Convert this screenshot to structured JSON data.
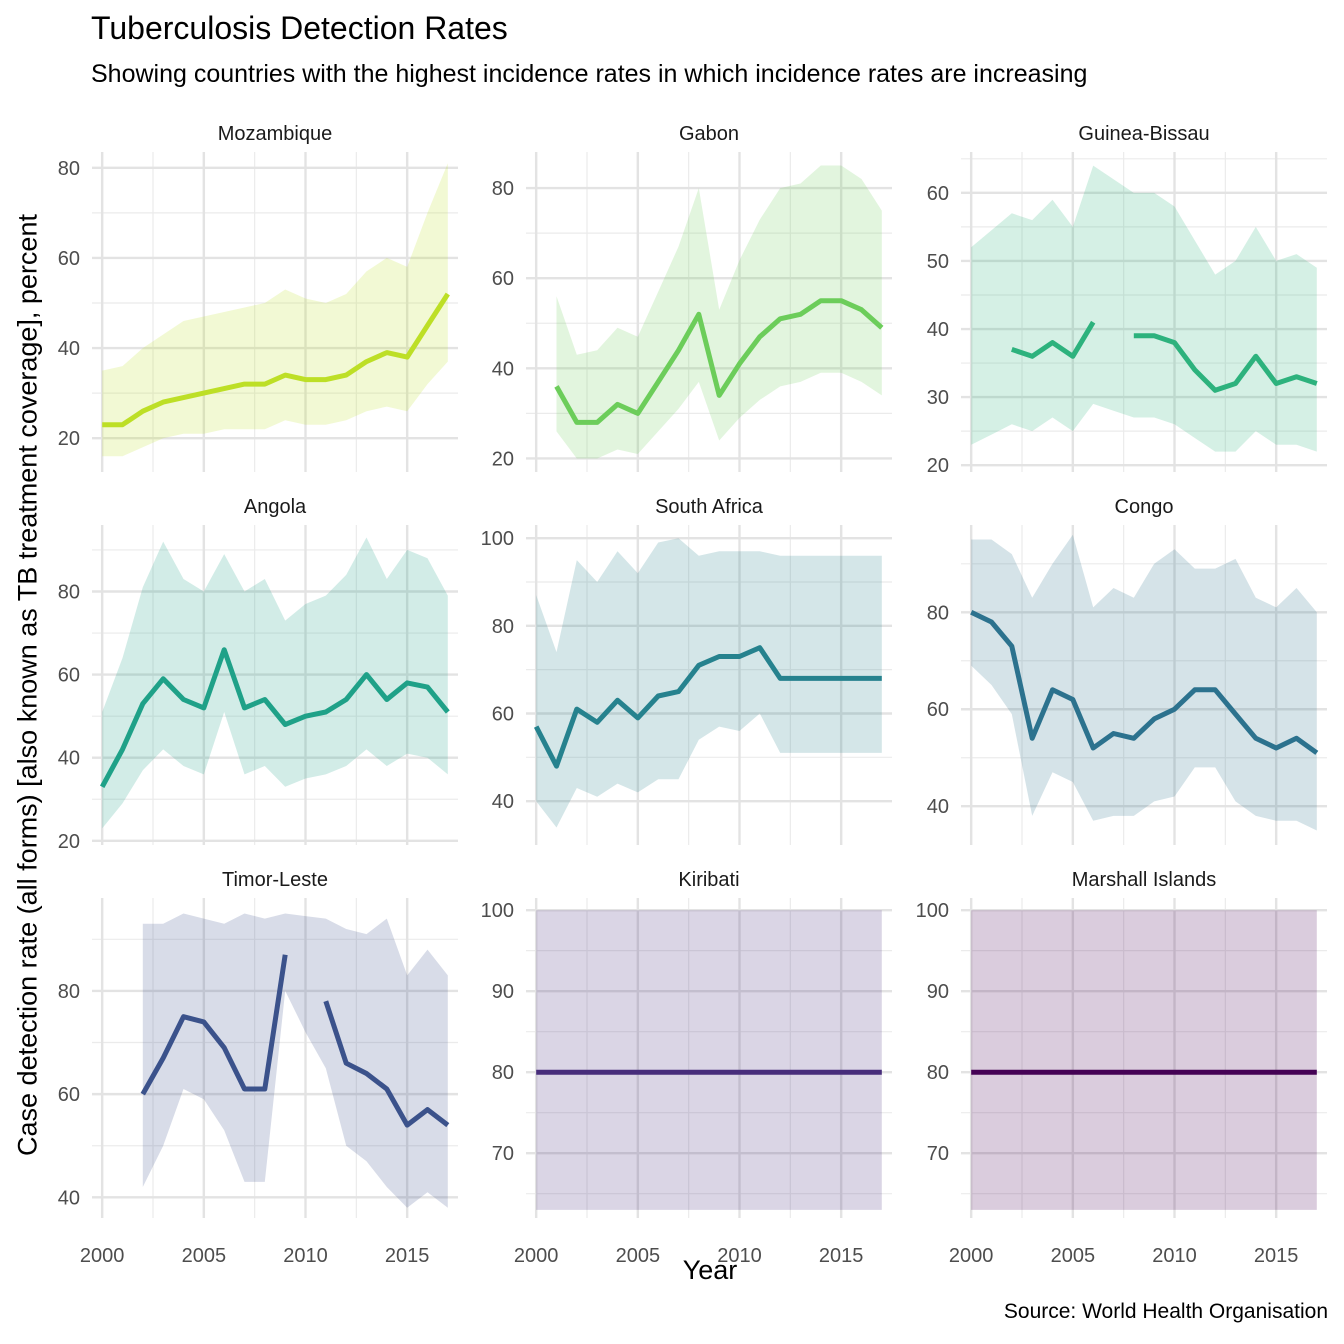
{
  "title": "Tuberculosis Detection Rates",
  "subtitle": "Showing countries with the highest incidence rates in which incidence rates are increasing",
  "caption": "Source: World Health Organisation",
  "xlabel": "Year",
  "ylabel": "Case detection rate (all forms) [also known as TB treatment coverage], percent",
  "chart_data": {
    "type": "line",
    "layout": "facet_wrap",
    "x_axis": {
      "label": "Year",
      "ticks": [
        2000,
        2005,
        2010,
        2015
      ],
      "xlim": [
        1999.5,
        2017.5
      ]
    },
    "y_axis": {
      "label": "Case detection rate (all forms) [also known as TB treatment coverage], percent"
    },
    "grid": true,
    "legend": "none",
    "panels": [
      {
        "name": "Mozambique",
        "color": "#bddf26",
        "ylim": [
          12.5,
          83.5
        ],
        "yticks": [
          20,
          40,
          60,
          80
        ],
        "x": [
          2000,
          2001,
          2002,
          2003,
          2004,
          2005,
          2006,
          2007,
          2008,
          2009,
          2010,
          2011,
          2012,
          2013,
          2014,
          2015,
          2016,
          2017
        ],
        "values": [
          23,
          23,
          26,
          28,
          29,
          30,
          31,
          32,
          32,
          34,
          33,
          33,
          34,
          37,
          39,
          38,
          45,
          52
        ],
        "lower": [
          16,
          16,
          18,
          20,
          21,
          21,
          22,
          22,
          22,
          24,
          23,
          23,
          24,
          26,
          27,
          26,
          32,
          37
        ],
        "upper": [
          35,
          36,
          40,
          43,
          46,
          47,
          48,
          49,
          50,
          53,
          51,
          50,
          52,
          57,
          60,
          58,
          70,
          81
        ]
      },
      {
        "name": "Gabon",
        "color": "#6ccd5a",
        "ylim": [
          17,
          88
        ],
        "yticks": [
          20,
          40,
          60,
          80
        ],
        "x": [
          2001,
          2002,
          2003,
          2004,
          2005,
          2006,
          2007,
          2008,
          2009,
          2010,
          2011,
          2012,
          2013,
          2014,
          2015,
          2016,
          2017
        ],
        "values": [
          36,
          28,
          28,
          32,
          30,
          37,
          44,
          52,
          34,
          41,
          47,
          51,
          52,
          55,
          55,
          53,
          49
        ],
        "lower": [
          26,
          20,
          20,
          22,
          21,
          26,
          31,
          37,
          24,
          29,
          33,
          36,
          37,
          39,
          39,
          37,
          34
        ],
        "upper": [
          56,
          43,
          44,
          49,
          47,
          57,
          67,
          80,
          53,
          64,
          73,
          80,
          81,
          85,
          85,
          82,
          75
        ]
      },
      {
        "name": "Guinea-Bissau",
        "color": "#2db27d",
        "ylim": [
          19,
          66
        ],
        "yticks": [
          20,
          30,
          40,
          50,
          60
        ],
        "x": [
          2000,
          2001,
          2002,
          2003,
          2004,
          2005,
          2006,
          2007,
          2008,
          2009,
          2010,
          2011,
          2012,
          2013,
          2014,
          2015,
          2016,
          2017
        ],
        "values": [
          null,
          null,
          37,
          36,
          38,
          36,
          41,
          null,
          39,
          39,
          38,
          34,
          31,
          32,
          36,
          32,
          33,
          32
        ],
        "lower": [
          23,
          24.5,
          26,
          25,
          27,
          25,
          29,
          28,
          27,
          27,
          26,
          24,
          22,
          22,
          25,
          23,
          23,
          22
        ],
        "upper": [
          52,
          54.5,
          57,
          56,
          59,
          55,
          64,
          62,
          60,
          60,
          58,
          53,
          48,
          50,
          55,
          50,
          51,
          49
        ]
      },
      {
        "name": "Angola",
        "color": "#1fa188",
        "ylim": [
          19,
          96
        ],
        "yticks": [
          20,
          40,
          60,
          80
        ],
        "x": [
          2000,
          2001,
          2002,
          2003,
          2004,
          2005,
          2006,
          2007,
          2008,
          2009,
          2010,
          2011,
          2012,
          2013,
          2014,
          2015,
          2016,
          2017
        ],
        "values": [
          33,
          42,
          53,
          59,
          54,
          52,
          66,
          52,
          54,
          48,
          50,
          51,
          54,
          60,
          54,
          58,
          57,
          51
        ],
        "lower": [
          23,
          29,
          37,
          42,
          38,
          36,
          51,
          36,
          38,
          33,
          35,
          36,
          38,
          42,
          38,
          41,
          40,
          36
        ],
        "upper": [
          51,
          64,
          81,
          92,
          83,
          80,
          89,
          80,
          83,
          73,
          77,
          79,
          84,
          93,
          83,
          90,
          88,
          79
        ]
      },
      {
        "name": "South Africa",
        "color": "#26828e",
        "ylim": [
          30,
          103
        ],
        "yticks": [
          40,
          60,
          80,
          100
        ],
        "x": [
          2000,
          2001,
          2002,
          2003,
          2004,
          2005,
          2006,
          2007,
          2008,
          2009,
          2010,
          2011,
          2012,
          2013,
          2014,
          2015,
          2016,
          2017
        ],
        "values": [
          57,
          48,
          61,
          58,
          63,
          59,
          64,
          65,
          71,
          73,
          73,
          75,
          68,
          68,
          68,
          68,
          68,
          68
        ],
        "lower": [
          40,
          34,
          43,
          41,
          44,
          42,
          45,
          45,
          54,
          57,
          56,
          60,
          51,
          51,
          51,
          51,
          51,
          51
        ],
        "upper": [
          87,
          74,
          95,
          90,
          97,
          92,
          99,
          100,
          96,
          97,
          97,
          97,
          96,
          96,
          96,
          96,
          96,
          96
        ]
      },
      {
        "name": "Congo",
        "color": "#2c728e",
        "ylim": [
          32,
          98
        ],
        "yticks": [
          40,
          60,
          80
        ],
        "x": [
          2000,
          2001,
          2002,
          2003,
          2004,
          2005,
          2006,
          2007,
          2008,
          2009,
          2010,
          2011,
          2012,
          2013,
          2014,
          2015,
          2016,
          2017
        ],
        "values": [
          80,
          78,
          73,
          54,
          64,
          62,
          52,
          55,
          54,
          58,
          60,
          64,
          64,
          59,
          54,
          52,
          54,
          51
        ],
        "lower": [
          69,
          65,
          59,
          38,
          47,
          45,
          37,
          38,
          38,
          41,
          42,
          48,
          48,
          41,
          38,
          37,
          37,
          35
        ],
        "upper": [
          95,
          95,
          92,
          83,
          90,
          96,
          81,
          85,
          83,
          90,
          93,
          89,
          89,
          91,
          83,
          81,
          85,
          80
        ]
      },
      {
        "name": "Timor-Leste",
        "color": "#3b528b",
        "ylim": [
          36,
          98
        ],
        "yticks": [
          40,
          60,
          80
        ],
        "x": [
          2002,
          2003,
          2004,
          2005,
          2006,
          2007,
          2008,
          2009,
          2010,
          2011,
          2012,
          2013,
          2014,
          2015,
          2016,
          2017
        ],
        "values": [
          60,
          67,
          75,
          74,
          69,
          61,
          61,
          87,
          null,
          78,
          66,
          64,
          61,
          54,
          57,
          54
        ],
        "lower": [
          42,
          50,
          61,
          59,
          53,
          43,
          43,
          80,
          72,
          65,
          50,
          47,
          42,
          38,
          41,
          38
        ],
        "upper": [
          93,
          93,
          95,
          94,
          93,
          95,
          94,
          95,
          94.5,
          94,
          92,
          91,
          94,
          83,
          88,
          83
        ]
      },
      {
        "name": "Kiribati",
        "color": "#472d7b",
        "ylim": [
          62,
          101.5
        ],
        "yticks": [
          70,
          80,
          90,
          100
        ],
        "x": [
          2000,
          2001,
          2002,
          2003,
          2004,
          2005,
          2006,
          2007,
          2008,
          2009,
          2010,
          2011,
          2012,
          2013,
          2014,
          2015,
          2016,
          2017
        ],
        "values": [
          80,
          80,
          80,
          80,
          80,
          80,
          80,
          80,
          80,
          80,
          80,
          80,
          80,
          80,
          80,
          80,
          80,
          80
        ],
        "lower": [
          63,
          63,
          63,
          63,
          63,
          63,
          63,
          63,
          63,
          63,
          63,
          63,
          63,
          63,
          63,
          63,
          63,
          63
        ],
        "upper": [
          100,
          100,
          100,
          100,
          100,
          100,
          100,
          100,
          100,
          100,
          100,
          100,
          100,
          100,
          100,
          100,
          100,
          100
        ]
      },
      {
        "name": "Marshall Islands",
        "color": "#440154",
        "ylim": [
          62,
          101.5
        ],
        "yticks": [
          70,
          80,
          90,
          100
        ],
        "x": [
          2000,
          2001,
          2002,
          2003,
          2004,
          2005,
          2006,
          2007,
          2008,
          2009,
          2010,
          2011,
          2012,
          2013,
          2014,
          2015,
          2016,
          2017
        ],
        "values": [
          80,
          80,
          80,
          80,
          80,
          80,
          80,
          80,
          80,
          80,
          80,
          80,
          80,
          80,
          80,
          80,
          80,
          80
        ],
        "lower": [
          63,
          63,
          63,
          63,
          63,
          63,
          63,
          63,
          63,
          63,
          63,
          63,
          63,
          63,
          63,
          63,
          63,
          63
        ],
        "upper": [
          100,
          100,
          100,
          100,
          100,
          100,
          100,
          100,
          100,
          100,
          100,
          100,
          100,
          100,
          100,
          100,
          100,
          100
        ]
      }
    ]
  }
}
